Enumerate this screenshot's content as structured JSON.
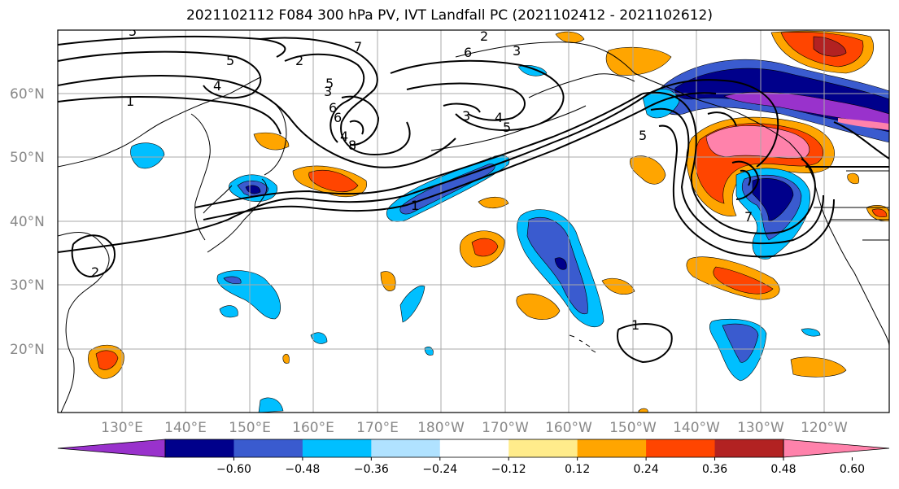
{
  "title": "2021102112 F084 300 hPa PV, IVT Landfall PC (2021102412 - 2021102612)",
  "lat_labels": [
    "60°N",
    "50°N",
    "40°N",
    "30°N",
    "20°N"
  ],
  "lon_labels": [
    "130°E",
    "140°E",
    "150°E",
    "160°E",
    "170°E",
    "180°W",
    "170°W",
    "160°W",
    "150°W",
    "140°W",
    "130°W",
    "120°W"
  ],
  "colorbar": {
    "ticks": [
      "−0.60",
      "−0.48",
      "−0.36",
      "−0.24",
      "−0.12",
      "0.12",
      "0.24",
      "0.36",
      "0.48",
      "0.60"
    ],
    "colors": [
      "#9932cc",
      "#00008b",
      "#3a5bcf",
      "#00bfff",
      "#b0e2ff",
      "#ffffff",
      "#ffec8b",
      "#ffa500",
      "#ff4500",
      "#b22222",
      "#ff82ab"
    ]
  },
  "contour_labels": [
    "5",
    "5",
    "4",
    "1",
    "7",
    "2",
    "3",
    "6",
    "6",
    "4",
    "5",
    "8",
    "3",
    "1",
    "2",
    "6",
    "3",
    "4",
    "5",
    "2",
    "7",
    "5",
    "1"
  ]
}
